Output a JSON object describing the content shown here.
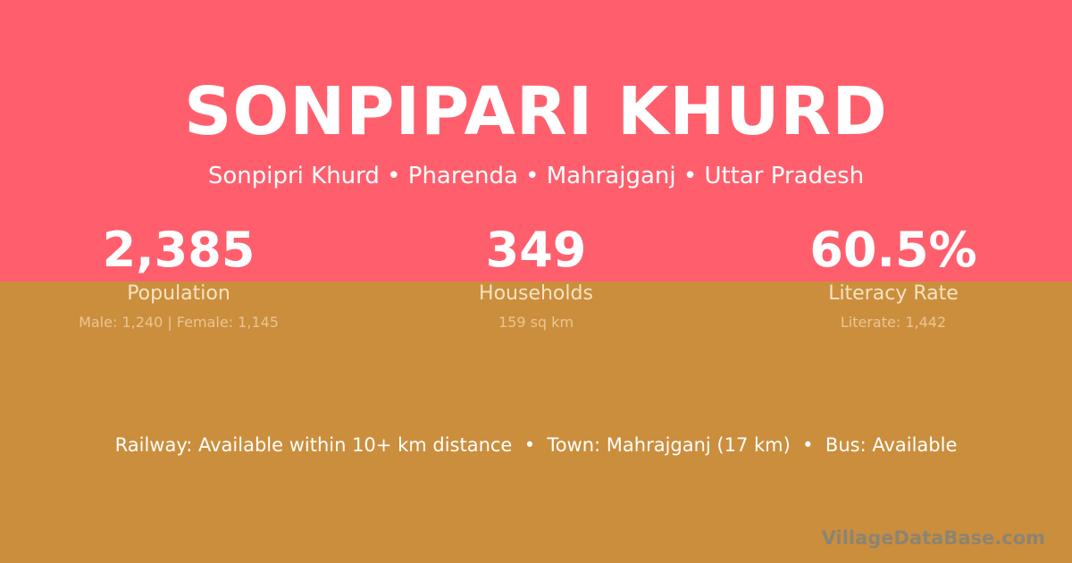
{
  "colors": {
    "top_bg": "#FF5F6D",
    "bottom_bg": "#CB8E3D"
  },
  "title": "SONPIPARI KHURD",
  "subtitle": "Sonpipri Khurd • Pharenda • Mahrajganj • Uttar Pradesh",
  "stats": [
    {
      "value": "2,385",
      "label": "Population",
      "detail": "Male: 1,240 | Female: 1,145"
    },
    {
      "value": "349",
      "label": "Households",
      "detail": "159 sq km"
    },
    {
      "value": "60.5%",
      "label": "Literacy Rate",
      "detail": "Literate: 1,442"
    }
  ],
  "access": "Railway: Available within 10+ km distance  •  Town: Mahrajganj (17 km)  •  Bus: Available",
  "watermark": "VillageDataBase.com"
}
